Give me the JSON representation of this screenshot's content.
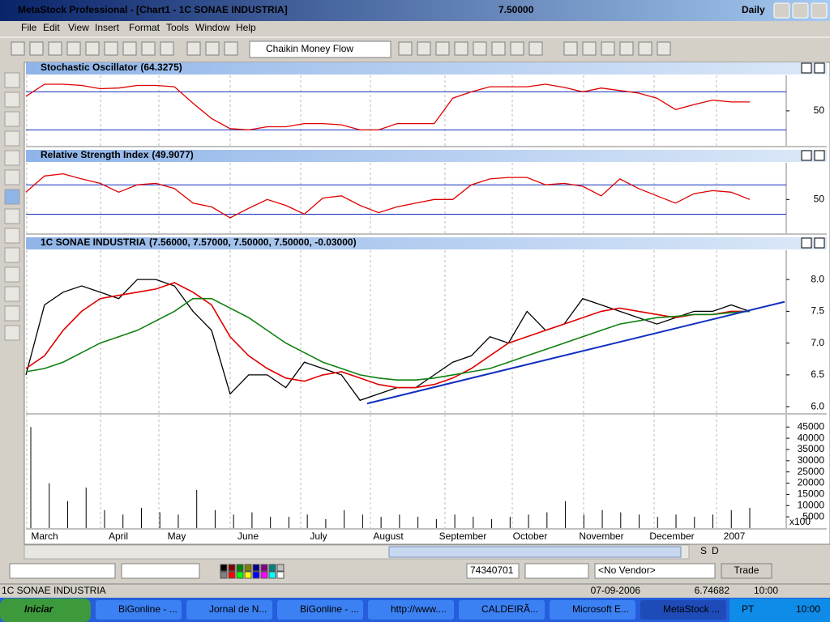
{
  "window": {
    "title": "MetaStock Professional - [Chart1 - 1C SONAE INDUSTRIA]",
    "price": "7.50000",
    "period": "Daily"
  },
  "menu": [
    "File",
    "Edit",
    "View",
    "Insert",
    "Format",
    "Tools",
    "Window",
    "Help"
  ],
  "toolbar": {
    "indicator": "Chaikin Money Flow"
  },
  "chart_data": [
    {
      "type": "line",
      "title": "Stochastic Oscillator",
      "last_value": "(64.3275)",
      "ylim": [
        -5,
        106
      ],
      "yticks": [
        50
      ],
      "levels": [
        80,
        20
      ],
      "series": [
        {
          "color": "#e00000",
          "values": [
            73,
            92,
            92,
            90,
            85,
            86,
            90,
            90,
            88,
            62,
            38,
            22,
            20,
            25,
            25,
            30,
            30,
            28,
            20,
            20,
            30,
            30,
            30,
            70,
            80,
            88,
            88,
            88,
            92,
            87,
            80,
            86,
            82,
            78,
            70,
            52,
            60,
            67,
            64,
            64
          ]
        }
      ]
    },
    {
      "type": "line",
      "title": "Relative Strength Index",
      "last_value": "(49.9077)",
      "ylim": [
        4,
        100
      ],
      "yticks": [
        50
      ],
      "levels": [
        70,
        30
      ],
      "series": [
        {
          "color": "#e00000",
          "values": [
            60,
            82,
            85,
            78,
            72,
            60,
            70,
            72,
            65,
            45,
            40,
            25,
            38,
            50,
            42,
            30,
            52,
            55,
            42,
            32,
            40,
            45,
            50,
            50,
            70,
            78,
            80,
            80,
            70,
            72,
            68,
            55,
            78,
            65,
            55,
            45,
            58,
            62,
            60,
            50
          ]
        }
      ]
    },
    {
      "type": "line",
      "title": "1C SONAE INDUSTRIA",
      "last_value": "(7.56000, 7.57000, 7.50000, 7.50000, -0.03000)",
      "ylim": [
        5.9,
        8.46
      ],
      "yticks": [
        {
          "value": 6,
          "label": "6.0"
        },
        6.5,
        {
          "value": 7,
          "label": "7.0"
        },
        7.5,
        {
          "value": 8,
          "label": "8.0"
        }
      ],
      "series": [
        {
          "color": "#000000",
          "values": [
            6.5,
            7.6,
            7.8,
            7.9,
            7.8,
            7.7,
            8.0,
            8.0,
            7.9,
            7.5,
            7.2,
            6.2,
            6.5,
            6.5,
            6.3,
            6.7,
            6.6,
            6.5,
            6.1,
            6.2,
            6.3,
            6.3,
            6.5,
            6.7,
            6.8,
            7.1,
            7.0,
            7.5,
            7.2,
            7.3,
            7.7,
            7.6,
            7.5,
            7.4,
            7.3,
            7.4,
            7.5,
            7.5,
            7.6,
            7.5
          ]
        },
        {
          "color": "#e00000",
          "values": [
            6.6,
            6.8,
            7.2,
            7.5,
            7.7,
            7.75,
            7.8,
            7.85,
            7.95,
            7.8,
            7.6,
            7.1,
            6.8,
            6.6,
            6.45,
            6.4,
            6.5,
            6.55,
            6.45,
            6.35,
            6.3,
            6.3,
            6.35,
            6.45,
            6.6,
            6.8,
            7.0,
            7.1,
            7.2,
            7.3,
            7.4,
            7.5,
            7.55,
            7.5,
            7.45,
            7.4,
            7.45,
            7.45,
            7.5,
            7.5
          ]
        },
        {
          "color": "#108010",
          "values": [
            6.55,
            6.6,
            6.7,
            6.85,
            7.0,
            7.1,
            7.2,
            7.35,
            7.5,
            7.7,
            7.7,
            7.55,
            7.4,
            7.2,
            7.0,
            6.85,
            6.7,
            6.6,
            6.5,
            6.45,
            6.42,
            6.42,
            6.45,
            6.5,
            6.55,
            6.6,
            6.7,
            6.8,
            6.9,
            7.0,
            7.1,
            7.2,
            7.3,
            7.35,
            7.4,
            7.42,
            7.45,
            7.45,
            7.48,
            7.5
          ]
        }
      ],
      "trendline": {
        "color": "#1030c0",
        "values": [
          6.05,
          7.65
        ]
      }
    },
    {
      "type": "bar",
      "color": "#000000",
      "unit_label": "x100",
      "ylim": [
        0,
        50500
      ],
      "yticks": [
        5000,
        10000,
        15000,
        20000,
        25000,
        30000,
        35000,
        40000,
        45000
      ],
      "values": [
        45000,
        20000,
        12000,
        18000,
        8000,
        6000,
        9000,
        7000,
        6000,
        17000,
        8000,
        6000,
        7000,
        5000,
        5000,
        6000,
        4000,
        8000,
        6000,
        5000,
        6000,
        5000,
        4000,
        6000,
        5000,
        4000,
        5000,
        6000,
        7000,
        12000,
        6000,
        8000,
        7000,
        6000,
        5000,
        6000,
        5000,
        6000,
        8000,
        9000
      ]
    }
  ],
  "x_axis": {
    "labels": [
      "March",
      "April",
      "May",
      "June",
      "July",
      "August",
      "September",
      "October",
      "November",
      "December",
      "2007"
    ]
  },
  "navigation": [
    "S",
    "D"
  ],
  "bottom_toolbar": {
    "field": "74340701",
    "vendor": "<No Vendor>",
    "trade": "Trade"
  },
  "status_bar": [
    "1C SONAE INDUSTRIA",
    "07-09-2006",
    "6.74682",
    "10:00"
  ],
  "taskbar": {
    "start": "Iniciar",
    "tasks": [
      "BiGonline - ...",
      "Jornal de N...",
      "BiGonline - ...",
      "http://www....",
      "CALDEIRÃ...",
      "Microsoft E...",
      "MetaStock ..."
    ],
    "lang": "PT",
    "clock": "10:00"
  }
}
